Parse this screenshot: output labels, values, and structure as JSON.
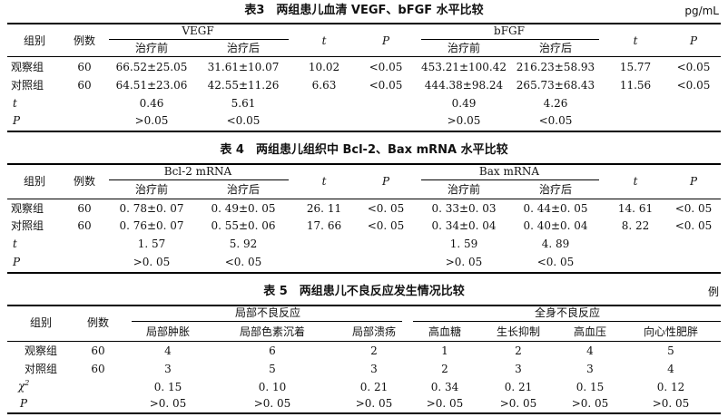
{
  "table3": {
    "caption": "表3　两组患儿血清 VEGF、bFGF 水平比较",
    "unit": "pg/mL",
    "headers": {
      "group": "组别",
      "count": "例数",
      "vegf": "VEGF",
      "bfgf": "bFGF",
      "before": "治疗前",
      "after": "治疗后",
      "t": "t",
      "p": "P"
    },
    "rows": [
      {
        "group": "观察组",
        "n": "60",
        "vegf_before": "66.52±25.05",
        "vegf_after": "31.61±10.07",
        "vegf_t": "10.02",
        "vegf_p": "<0.05",
        "bfgf_before": "453.21±100.42",
        "bfgf_after": "216.23±58.93",
        "bfgf_t": "15.77",
        "bfgf_p": "<0.05"
      },
      {
        "group": "对照组",
        "n": "60",
        "vegf_before": "64.51±23.06",
        "vegf_after": "42.55±11.26",
        "vegf_t": "6.63",
        "vegf_p": "<0.05",
        "bfgf_before": "444.38±98.24",
        "bfgf_after": "265.73±68.43",
        "bfgf_t": "11.56",
        "bfgf_p": "<0.05"
      }
    ],
    "t_row": {
      "label": "t",
      "vegf_before": "0.46",
      "vegf_after": "5.61",
      "bfgf_before": "0.49",
      "bfgf_after": "4.26"
    },
    "p_row": {
      "label": "P",
      "vegf_before": ">0.05",
      "vegf_after": "<0.05",
      "bfgf_before": ">0.05",
      "bfgf_after": "<0.05"
    }
  },
  "table4": {
    "caption": "表 4　两组患儿组织中 Bcl-2、Bax mRNA 水平比较",
    "headers": {
      "group": "组别",
      "count": "例数",
      "bcl2": "Bcl-2 mRNA",
      "bax": "Bax mRNA",
      "before": "治疗前",
      "after": "治疗后",
      "t": "t",
      "p": "P"
    },
    "rows": [
      {
        "group": "观察组",
        "n": "60",
        "bcl_before": "0. 78±0. 07",
        "bcl_after": "0. 49±0. 05",
        "bcl_t": "26. 11",
        "bcl_p": "<0. 05",
        "bax_before": "0. 33±0. 03",
        "bax_after": "0. 44±0. 05",
        "bax_t": "14. 61",
        "bax_p": "<0. 05"
      },
      {
        "group": "对照组",
        "n": "60",
        "bcl_before": "0. 76±0. 07",
        "bcl_after": "0. 55±0. 06",
        "bcl_t": "17. 66",
        "bcl_p": "<0. 05",
        "bax_before": "0. 34±0. 04",
        "bax_after": "0. 40±0. 04",
        "bax_t": "8. 22",
        "bax_p": "<0. 05"
      }
    ],
    "t_row": {
      "label": "t",
      "bcl_before": "1. 57",
      "bcl_after": "5. 92",
      "bax_before": "1. 59",
      "bax_after": "4. 89"
    },
    "p_row": {
      "label": "P",
      "bcl_before": ">0. 05",
      "bcl_after": "<0. 05",
      "bax_before": ">0. 05",
      "bax_after": "<0. 05"
    }
  },
  "table5": {
    "caption": "表 5　两组患儿不良反应发生情况比较",
    "unit": "例",
    "headers": {
      "group": "组别",
      "count": "例数",
      "local": "局部不良反应",
      "systemic": "全身不良反应",
      "cols": [
        "局部肿胀",
        "局部色素沉着",
        "局部溃疡",
        "高血糖",
        "生长抑制",
        "高血压",
        "向心性肥胖"
      ]
    },
    "rows": [
      {
        "group": "观察组",
        "n": "60",
        "values": [
          "4",
          "6",
          "2",
          "1",
          "2",
          "4",
          "5"
        ]
      },
      {
        "group": "对照组",
        "n": "60",
        "values": [
          "3",
          "5",
          "3",
          "2",
          "3",
          "3",
          "4"
        ]
      }
    ],
    "chi_row": {
      "label": "χ",
      "sup": "2",
      "values": [
        "0. 15",
        "0. 10",
        "0. 21",
        "0. 34",
        "0. 21",
        "0. 15",
        "0. 12"
      ]
    },
    "p_row": {
      "label": "P",
      "values": [
        ">0. 05",
        ">0. 05",
        ">0. 05",
        ">0. 05",
        ">0. 05",
        ">0. 05",
        ">0. 05"
      ]
    }
  }
}
